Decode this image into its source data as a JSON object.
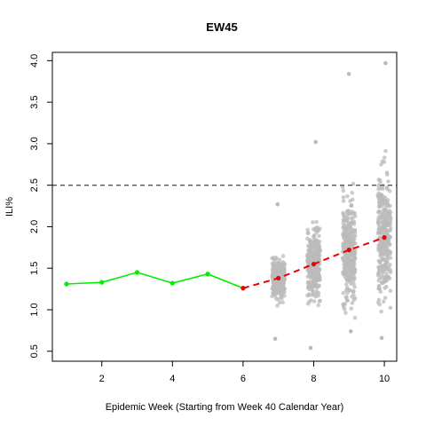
{
  "chart_data": {
    "type": "line",
    "title": "EW45",
    "xlabel": "Epidemic Week (Starting from Week 40 Calendar Year)",
    "ylabel": "ILI%",
    "xlim": [
      0.6,
      10.35
    ],
    "ylim": [
      0.38,
      4.1
    ],
    "xticks": [
      2,
      4,
      6,
      8,
      10
    ],
    "xtick_labels": [
      "2",
      "4",
      "6",
      "8",
      "10"
    ],
    "yticks": [
      0.5,
      1.0,
      1.5,
      2.0,
      2.5,
      3.0,
      3.5,
      4.0
    ],
    "ytick_labels": [
      "0.5",
      "1.0",
      "1.5",
      "2.0",
      "2.5",
      "3.0",
      "3.5",
      "4.0"
    ],
    "grid": false,
    "threshold": {
      "y": 2.5,
      "style": "dashed",
      "color": "#555555"
    },
    "series": [
      {
        "style": "solid",
        "color": "#00ee00",
        "x": [
          1,
          2,
          3,
          4,
          5,
          6
        ],
        "y": [
          1.31,
          1.33,
          1.45,
          1.32,
          1.43,
          1.26
        ]
      },
      {
        "style": "dashed",
        "color": "#ee0000",
        "x": [
          6,
          7,
          8,
          9,
          10
        ],
        "y": [
          1.26,
          1.38,
          1.55,
          1.72,
          1.87
        ]
      }
    ],
    "simulations": {
      "color": "#bbbbbb",
      "weeks": [
        {
          "x": 7,
          "center": 1.38,
          "min": 0.65,
          "max": 2.27
        },
        {
          "x": 8,
          "center": 1.55,
          "min": 0.54,
          "max": 3.02
        },
        {
          "x": 9,
          "center": 1.72,
          "min": 0.74,
          "max": 3.84
        },
        {
          "x": 10,
          "center": 1.87,
          "min": 0.66,
          "max": 3.97
        }
      ]
    }
  }
}
